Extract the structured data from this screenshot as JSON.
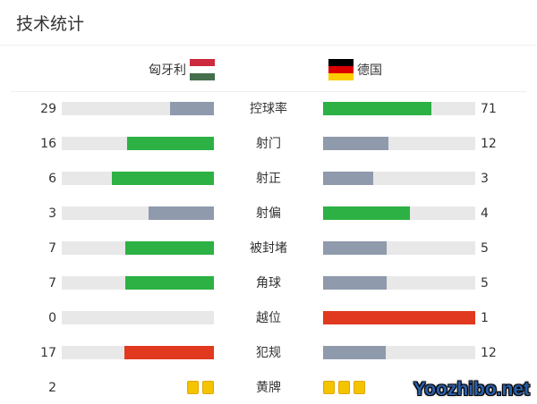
{
  "title": "技术统计",
  "home": {
    "name": "匈牙利",
    "flag": [
      "#cd2a3e",
      "#ffffff",
      "#436f4d"
    ]
  },
  "away": {
    "name": "德国",
    "flag": [
      "#000000",
      "#dd0000",
      "#ffce00"
    ]
  },
  "colors": {
    "win": "#2db144",
    "lose": "#8f9aac",
    "red": "#e0391f",
    "track": "#e8e8e8",
    "card": "#f5c400"
  },
  "stats": [
    {
      "label": "控球率",
      "home": "29",
      "away": "71",
      "home_pct": 29,
      "away_pct": 71,
      "home_color": "lose",
      "away_color": "win"
    },
    {
      "label": "射门",
      "home": "16",
      "away": "12",
      "home_pct": 57,
      "away_pct": 43,
      "home_color": "win",
      "away_color": "lose"
    },
    {
      "label": "射正",
      "home": "6",
      "away": "3",
      "home_pct": 67,
      "away_pct": 33,
      "home_color": "win",
      "away_color": "lose"
    },
    {
      "label": "射偏",
      "home": "3",
      "away": "4",
      "home_pct": 43,
      "away_pct": 57,
      "home_color": "lose",
      "away_color": "win"
    },
    {
      "label": "被封堵",
      "home": "7",
      "away": "5",
      "home_pct": 58,
      "away_pct": 42,
      "home_color": "win",
      "away_color": "lose"
    },
    {
      "label": "角球",
      "home": "7",
      "away": "5",
      "home_pct": 58,
      "away_pct": 42,
      "home_color": "win",
      "away_color": "lose"
    },
    {
      "label": "越位",
      "home": "0",
      "away": "1",
      "home_pct": 0,
      "away_pct": 100,
      "home_color": "lose",
      "away_color": "red"
    },
    {
      "label": "犯规",
      "home": "17",
      "away": "12",
      "home_pct": 59,
      "away_pct": 41,
      "home_color": "red",
      "away_color": "lose"
    }
  ],
  "yellow": {
    "label": "黄牌",
    "home": "2",
    "home_cards": 2,
    "away_cards": 3
  },
  "watermark": "Yoozhibo.net"
}
